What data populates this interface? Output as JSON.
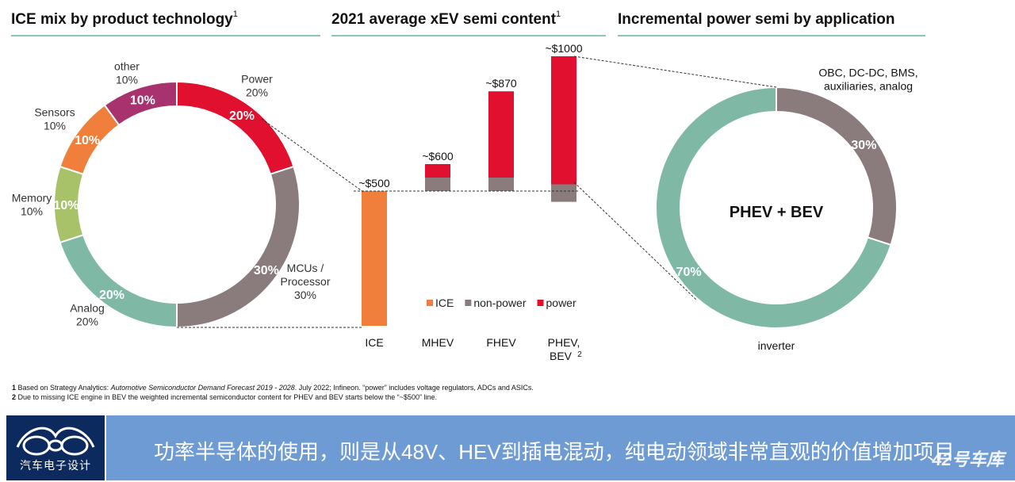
{
  "sections": {
    "ice_title": "ICE mix by product technology",
    "ice_sup": "1",
    "xev_title": "2021 average xEV semi content",
    "xev_sup": "1",
    "incr_title": "Incremental power semi by application"
  },
  "chart_data": [
    {
      "type": "pie",
      "title": "ICE mix by product technology",
      "slices": [
        {
          "label": "Power",
          "value": 20,
          "color": "#e0102e",
          "ext": [
            "Power",
            "20%"
          ]
        },
        {
          "label": "MCUs / Processor",
          "value": 30,
          "color": "#8a7c7d",
          "ext": [
            "MCUs /",
            "Processor",
            "30%"
          ]
        },
        {
          "label": "Analog",
          "value": 20,
          "color": "#7fb9a6",
          "ext": [
            "Analog",
            "20%"
          ]
        },
        {
          "label": "Memory",
          "value": 10,
          "color": "#a8c26a",
          "ext": [
            "Memory",
            "10%"
          ]
        },
        {
          "label": "Sensors",
          "value": 10,
          "color": "#ef7f3b",
          "ext": [
            "Sensors",
            "10%"
          ]
        },
        {
          "label": "other",
          "value": 10,
          "color": "#a8326e",
          "ext": [
            "other",
            "10%"
          ]
        }
      ]
    },
    {
      "type": "bar",
      "title": "2021 average xEV semi content",
      "categories": [
        "ICE",
        "MHEV",
        "FHEV",
        "PHEV, BEV"
      ],
      "category_sup": [
        "",
        "",
        "",
        "2"
      ],
      "value_labels": [
        "~$500",
        "~$600",
        "~$870",
        "~$1000"
      ],
      "series": [
        {
          "name": "ICE",
          "color": "#ef7f3b"
        },
        {
          "name": "non-power",
          "color": "#8a7c7d"
        },
        {
          "name": "power",
          "color": "#e0102e"
        }
      ],
      "segments": [
        [
          {
            "series": "ICE",
            "from": 0,
            "to": 500
          }
        ],
        [
          {
            "series": "non-power",
            "from": 500,
            "to": 550
          },
          {
            "series": "power",
            "from": 550,
            "to": 600
          }
        ],
        [
          {
            "series": "non-power",
            "from": 500,
            "to": 550
          },
          {
            "series": "power",
            "from": 550,
            "to": 870
          }
        ],
        [
          {
            "series": "non-power",
            "from": 460,
            "to": 525
          },
          {
            "series": "power",
            "from": 525,
            "to": 1000
          }
        ]
      ],
      "ylim": [
        0,
        1000
      ]
    },
    {
      "type": "pie",
      "title": "Incremental power semi by application",
      "center_label": "PHEV + BEV",
      "slices": [
        {
          "label": "OBC, DC-DC, BMS, auxiliaries, analog",
          "value": 30,
          "color": "#8a7c7d",
          "ext": [
            "OBC, DC-DC, BMS,",
            "auxiliaries, analog"
          ]
        },
        {
          "label": "inverter",
          "value": 70,
          "color": "#7fb9a6",
          "ext": [
            "inverter"
          ]
        }
      ]
    }
  ],
  "footnotes": {
    "n1_num": "1",
    "n1_a": " Based on Strategy Analytics: ",
    "n1_em": "Automotive Semiconductor Demand Forecast 2019 - 2028",
    "n1_b": ". July 2022; Infineon. “power” includes voltage regulators, ADCs and ASICs.",
    "n2_num": "2",
    "n2_text": " Due to missing ICE engine in BEV the weighted incremental semiconductor content for PHEV and BEV starts below the “~$500” line."
  },
  "banner": {
    "logo_text": "汽车电子设计",
    "caption": "功率半导体的使用，则是从48V、HEV到插电混动，纯电动领域非常直观的价值增加项目",
    "watermark": "42号车库"
  },
  "colors": {
    "rule": "#8fc3b2",
    "banner_bg": "#6f9bd4",
    "logo_bg": "#0c2a5e"
  }
}
